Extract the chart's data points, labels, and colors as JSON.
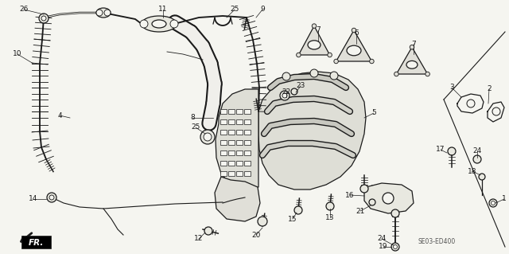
{
  "bg_color": "#f5f5f0",
  "fig_width": 6.4,
  "fig_height": 3.19,
  "dpi": 100,
  "watermark": "SE03-ED400",
  "fr_label": "FR.",
  "line_color": "#1a1a1a",
  "fill_light": "#e8e8e0",
  "fill_mid": "#d0cfc8",
  "label_fontsize": 6.5
}
